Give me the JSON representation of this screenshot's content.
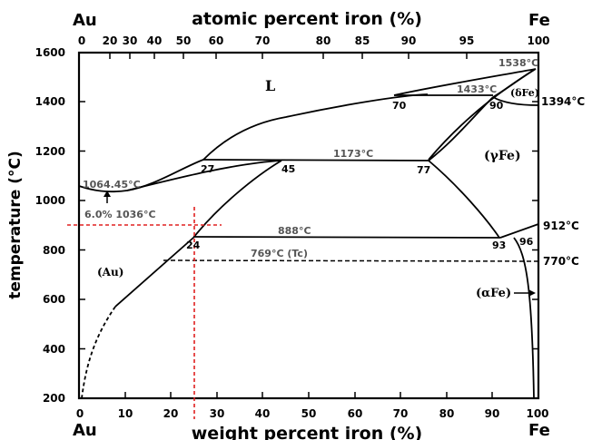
{
  "axes": {
    "top_title": "atomic percent iron (%)",
    "bottom_title": "weight percent iron (%)",
    "left_title": "temperature (°C)",
    "left_element": "Au",
    "right_element": "Fe",
    "top_ticks": [
      "0",
      "20",
      "30",
      "40",
      "50",
      "60",
      "70",
      "80",
      "85",
      "90",
      "95",
      "100"
    ],
    "bottom_ticks": [
      "0",
      "10",
      "20",
      "30",
      "40",
      "50",
      "60",
      "70",
      "80",
      "90",
      "100"
    ],
    "y_ticks": [
      "200",
      "400",
      "600",
      "800",
      "1000",
      "1200",
      "1400",
      "1600"
    ]
  },
  "labels": {
    "liquid": "L",
    "au_phase": "(Au)",
    "gamma_fe": "(γFe)",
    "delta_fe": "(δFe)",
    "alpha_fe": "(αFe)",
    "t_fe_melt": "1538°C",
    "t_peritectic": "1433°C",
    "t_delta_gamma": "1394°C",
    "t_au_melt": "1064.45°C",
    "min_point": "6.0% 1036°C",
    "t_monotectic": "1173°C",
    "t_eutectoid": "888°C",
    "t_curie_au": "769°C (Tc)",
    "t_alpha_gamma": "912°C",
    "t_curie_fe": "770°C",
    "c_70": "70",
    "c_90": "90",
    "c_27": "27",
    "c_45": "45",
    "c_77": "77",
    "c_24": "24",
    "c_93": "93",
    "c_96": "96"
  },
  "colors": {
    "line": "#000000",
    "label": "#555555",
    "guide": "#e02020"
  }
}
